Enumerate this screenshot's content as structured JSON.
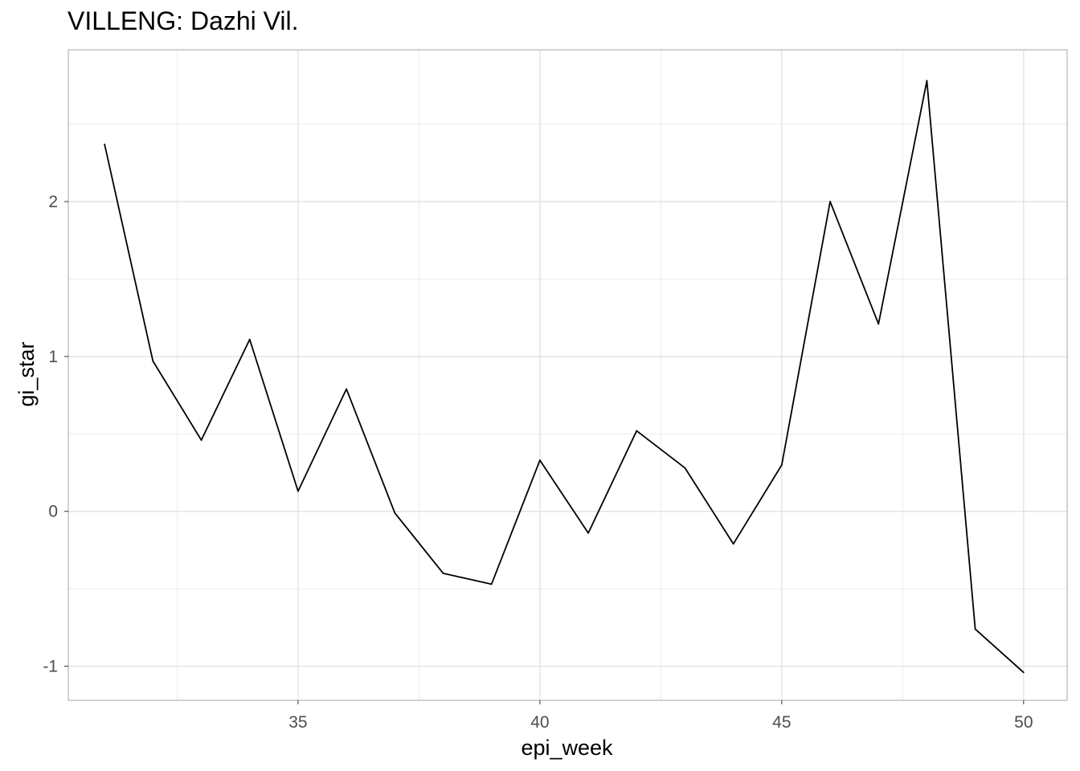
{
  "chart_data": {
    "type": "line",
    "title": "VILLENG: Dazhi Vil.",
    "xlabel": "epi_week",
    "ylabel": "gi_star",
    "x": [
      31,
      32,
      33,
      34,
      35,
      36,
      37,
      38,
      39,
      40,
      41,
      42,
      43,
      44,
      45,
      46,
      47,
      48,
      49,
      50
    ],
    "series": [
      {
        "values": [
          2.37,
          0.97,
          0.46,
          1.11,
          0.13,
          0.79,
          -0.01,
          -0.4,
          -0.47,
          0.33,
          -0.14,
          0.52,
          0.28,
          -0.21,
          0.3,
          2.0,
          1.21,
          2.78,
          -0.76,
          -1.04
        ]
      }
    ],
    "xlim": [
      30.25,
      50.9
    ],
    "ylim": [
      -1.22,
      2.98
    ],
    "x_ticks": [
      35,
      40,
      45,
      50
    ],
    "x_tick_labels": [
      "35",
      "40",
      "45",
      "50"
    ],
    "y_ticks": [
      -1,
      0,
      1,
      2
    ],
    "y_tick_labels": [
      "-1",
      "0",
      "1",
      "2"
    ],
    "x_minor_ticks": [
      32.5,
      37.5,
      42.5,
      47.5
    ],
    "y_minor_ticks": [
      -0.5,
      0.5,
      1.5,
      2.5
    ],
    "grid": true,
    "colors": {
      "line": "#000000",
      "grid": "#dedede",
      "border": "#b3b3b3"
    }
  }
}
